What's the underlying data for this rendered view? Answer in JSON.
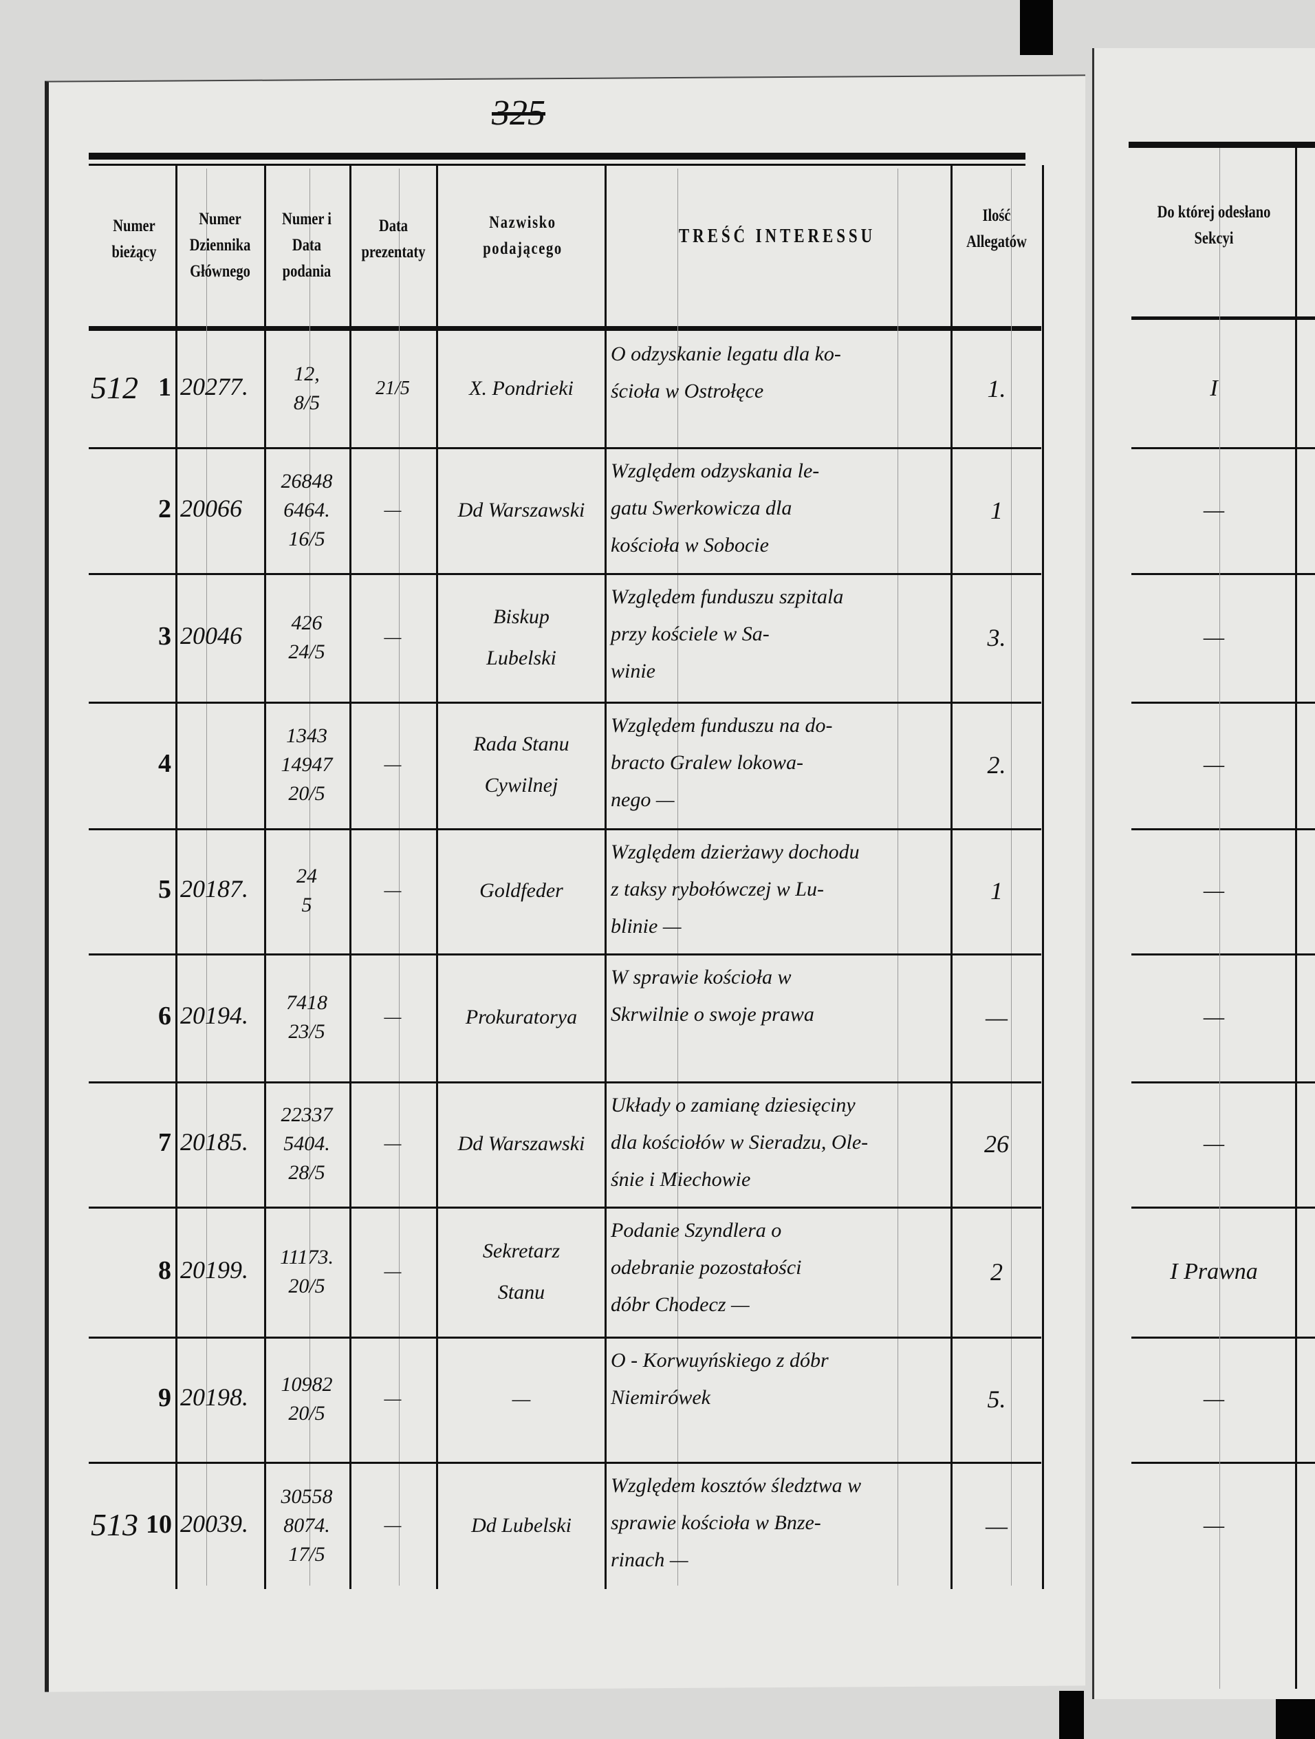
{
  "page_number": "325",
  "headers": {
    "numer_biezacy": "Numer bieżący",
    "numer_dziennika": "Numer Dziennika Głównego",
    "numer_data_podania": "Numer i Data podania",
    "data_prezentaty": "Data prezentaty",
    "nazwisko": "Nazwisko podającego",
    "tresc": "TREŚĆ INTERESSU",
    "ilosc": "Ilość Allegatów",
    "sekcja": "Do której odesłano Sekcyi"
  },
  "rows": [
    {
      "margin": "512",
      "nr": "1",
      "dziennik": "20277.",
      "numer_data": [
        "12,",
        "8/5"
      ],
      "prezentata": "21/5",
      "nazwisko": [
        "X. Pondrieki"
      ],
      "tresc": [
        "O odzyskanie legatu dla ko-",
        "ścioła w Ostrołęce"
      ],
      "ilosc": "1.",
      "sekcja": "I"
    },
    {
      "margin": "",
      "nr": "2",
      "dziennik": "20066",
      "numer_data": [
        "26848",
        "6464.",
        "16/5"
      ],
      "prezentata": "—",
      "nazwisko": [
        "Dd Warszawski"
      ],
      "tresc": [
        "Względem odzyskania le-",
        "gatu Swerkowicza dla",
        "kościoła w Sobocie"
      ],
      "ilosc": "1",
      "sekcja": "—"
    },
    {
      "margin": "",
      "nr": "3",
      "dziennik": "20046",
      "numer_data": [
        "426",
        "24/5"
      ],
      "prezentata": "—",
      "nazwisko": [
        "Biskup",
        "Lubelski"
      ],
      "tresc": [
        "Względem funduszu szpitala",
        "przy kościele w Sa-",
        "winie"
      ],
      "ilosc": "3.",
      "sekcja": "—"
    },
    {
      "margin": "",
      "nr": "4",
      "dziennik": "",
      "numer_data": [
        "1343",
        "14947",
        "20/5"
      ],
      "prezentata": "—",
      "nazwisko": [
        "Rada Stanu",
        "Cywilnej"
      ],
      "tresc": [
        "Względem funduszu na do-",
        "bracto Gralew lokowa-",
        "nego —"
      ],
      "ilosc": "2.",
      "sekcja": "—"
    },
    {
      "margin": "",
      "nr": "5",
      "dziennik": "20187.",
      "numer_data": [
        "24",
        "5"
      ],
      "prezentata": "—",
      "nazwisko": [
        "Goldfeder"
      ],
      "tresc": [
        "Względem dzierżawy dochodu",
        "z taksy rybołówczej w Lu-",
        "blinie —"
      ],
      "ilosc": "1",
      "sekcja": "—"
    },
    {
      "margin": "",
      "nr": "6",
      "dziennik": "20194.",
      "numer_data": [
        "7418",
        "23/5"
      ],
      "prezentata": "—",
      "nazwisko": [
        "Prokuratorya"
      ],
      "tresc": [
        "W sprawie kościoła w",
        "Skrwilnie o swoje prawa"
      ],
      "ilosc": "—",
      "sekcja": "—"
    },
    {
      "margin": "",
      "nr": "7",
      "dziennik": "20185.",
      "numer_data": [
        "22337",
        "5404.",
        "28/5"
      ],
      "prezentata": "—",
      "nazwisko": [
        "Dd Warszawski"
      ],
      "tresc": [
        "Układy o zamianę dziesięciny",
        "dla kościołów w Sieradzu, Ole-",
        "śnie i Miechowie"
      ],
      "ilosc": "26",
      "sekcja": "—"
    },
    {
      "margin": "",
      "nr": "8",
      "dziennik": "20199.",
      "numer_data": [
        "11173.",
        "20/5"
      ],
      "prezentata": "—",
      "nazwisko": [
        "Sekretarz",
        "Stanu"
      ],
      "tresc": [
        "Podanie Szyndlera o",
        "odebranie pozostałości",
        "dóbr Chodecz —"
      ],
      "ilosc": "2",
      "sekcja": "I Prawna"
    },
    {
      "margin": "",
      "nr": "9",
      "dziennik": "20198.",
      "numer_data": [
        "10982",
        "20/5"
      ],
      "prezentata": "—",
      "nazwisko": [
        "—"
      ],
      "tresc": [
        "O - Korwuyńskiego z dóbr",
        "Niemirówek"
      ],
      "ilosc": "5.",
      "sekcja": "—"
    },
    {
      "margin": "513",
      "nr": "10",
      "dziennik": "20039.",
      "numer_data": [
        "30558",
        "8074.",
        "17/5"
      ],
      "prezentata": "—",
      "nazwisko": [
        "Dd Lubelski"
      ],
      "tresc": [
        "Względem kosztów śledztwa w",
        "sprawie kościoła w Bnze-",
        "rinach —"
      ],
      "ilosc": "—",
      "sekcja": "—"
    }
  ]
}
